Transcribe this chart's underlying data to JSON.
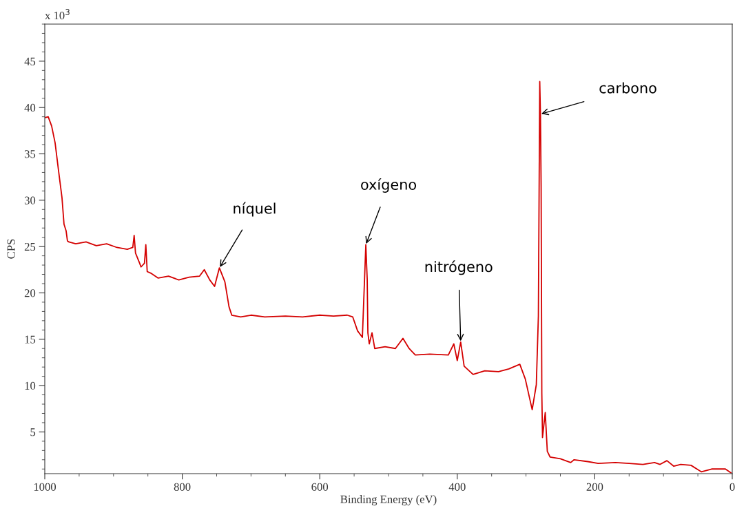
{
  "chart_data": {
    "type": "line",
    "xlabel": "Binding Energy (eV)",
    "ylabel": "CPS",
    "annotations": [
      "x 10$^{3}$",
      {
        "text": "níquel",
        "x": 746,
        "y": 22.7
      },
      {
        "text": "oxígeno",
        "x": 533,
        "y": 25.2
      },
      {
        "text": "nitrógeno",
        "x": 395,
        "y": 14.7
      },
      {
        "text": "carbono",
        "x": 279,
        "y": 39.3
      }
    ],
    "xlim": [
      1000,
      0
    ],
    "xticks": [
      1000,
      800,
      600,
      400,
      200,
      0
    ],
    "ylim": [
      0.5,
      49
    ],
    "yticks": [
      5,
      10,
      15,
      20,
      25,
      30,
      35,
      40,
      45
    ],
    "grid": false,
    "marker": "none",
    "line_style": "solid",
    "series": [
      {
        "color": "#d40000",
        "x": [
          1000,
          995,
          990,
          985,
          980,
          975,
          972,
          969,
          967,
          965,
          955,
          940,
          925,
          910,
          895,
          880,
          872,
          870,
          868,
          862,
          860,
          855,
          853,
          851,
          845,
          835,
          820,
          805,
          790,
          775,
          768,
          760,
          753,
          746,
          738,
          732,
          728,
          715,
          700,
          680,
          650,
          625,
          600,
          580,
          560,
          552,
          545,
          538,
          533,
          531,
          530,
          528,
          524,
          520,
          505,
          490,
          479,
          470,
          461,
          440,
          413,
          405,
          400,
          395,
          390,
          377,
          360,
          340,
          325,
          309,
          301,
          291,
          285,
          282,
          280,
          279,
          278,
          277,
          276,
          272,
          269,
          265,
          250,
          235,
          230,
          210,
          195,
          170,
          150,
          130,
          113,
          105,
          95,
          85,
          75,
          60,
          45,
          30,
          10,
          2
        ],
        "values": [
          38.9,
          39.0,
          38.0,
          36.2,
          33.2,
          30.3,
          27.4,
          26.7,
          25.6,
          25.5,
          25.3,
          25.5,
          25.1,
          25.3,
          24.9,
          24.7,
          24.9,
          26.2,
          24.3,
          23.2,
          22.8,
          23.2,
          25.2,
          22.3,
          22.1,
          21.6,
          21.8,
          21.4,
          21.7,
          21.8,
          22.5,
          21.4,
          20.7,
          22.7,
          21.2,
          18.5,
          17.6,
          17.4,
          17.6,
          17.4,
          17.5,
          17.4,
          17.6,
          17.5,
          17.6,
          17.4,
          15.9,
          15.2,
          25.2,
          21.5,
          15.7,
          14.5,
          15.7,
          14.0,
          14.2,
          14.0,
          15.1,
          14.0,
          13.3,
          13.4,
          13.3,
          14.5,
          12.7,
          14.7,
          12.1,
          11.2,
          11.6,
          11.5,
          11.8,
          12.3,
          10.7,
          7.4,
          10.1,
          17.5,
          42.8,
          39.3,
          31.5,
          9.2,
          4.4,
          7.1,
          2.9,
          2.3,
          2.1,
          1.7,
          2.0,
          1.8,
          1.6,
          1.7,
          1.6,
          1.5,
          1.7,
          1.5,
          1.9,
          1.3,
          1.5,
          1.4,
          0.7,
          1.0,
          1.0,
          0.6
        ]
      }
    ]
  }
}
